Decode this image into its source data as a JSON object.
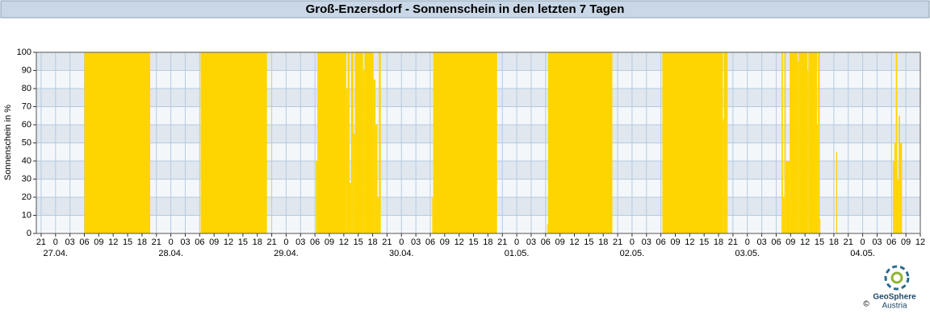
{
  "chart_data": {
    "type": "step-area",
    "title": "Groß-Enzersdorf - Sonnenschein in den letzten 7 Tagen",
    "y_label": "Sonnenschein in %",
    "x": [
      0,
      9,
      22.7,
      33.2,
      47.0,
      57.2,
      57.5,
      63.5,
      63.8,
      64.2,
      64.5,
      65.0,
      65.3,
      67.0,
      67.3,
      69.2,
      69.6,
      70.0,
      70.3,
      70.7,
      81.4,
      81.6,
      94.9,
      105.3,
      105.5,
      118.9,
      129.3,
      141.9,
      142.1,
      142.9,
      154.1,
      154.4,
      154.7,
      155.0,
      155.8,
      157.5,
      157.7,
      159.5,
      159.7,
      161.5,
      161.7,
      162.0,
      162.2,
      165.5,
      165.7,
      177.3,
      177.6,
      177.9,
      178.2,
      178.5,
      178.8,
      179.2,
      183
    ],
    "values": [
      0,
      100,
      0,
      100,
      0,
      40,
      100,
      80,
      100,
      28,
      100,
      55,
      100,
      90,
      100,
      85,
      60,
      20,
      100,
      0,
      20,
      100,
      0,
      5,
      100,
      0,
      100,
      63,
      100,
      0,
      100,
      20,
      100,
      40,
      100,
      95,
      100,
      90,
      100,
      60,
      100,
      8,
      0,
      45,
      0,
      40,
      50,
      100,
      30,
      65,
      50,
      0,
      0
    ],
    "color": "#ffd500",
    "xlim": [
      -1,
      183
    ],
    "ylim": [
      0,
      100
    ],
    "yticks": [
      0,
      10,
      20,
      30,
      40,
      50,
      60,
      70,
      80,
      90,
      100
    ],
    "xticks": [
      {
        "value": 0,
        "label": "21"
      },
      {
        "value": 3,
        "label": "0"
      },
      {
        "value": 6,
        "label": "03"
      },
      {
        "value": 9,
        "label": "06"
      },
      {
        "value": 12,
        "label": "09"
      },
      {
        "value": 15,
        "label": "12"
      },
      {
        "value": 18,
        "label": "15"
      },
      {
        "value": 21,
        "label": "18"
      },
      {
        "value": 24,
        "label": "21"
      },
      {
        "value": 27,
        "label": "0"
      },
      {
        "value": 30,
        "label": "03"
      },
      {
        "value": 33,
        "label": "06"
      },
      {
        "value": 36,
        "label": "09"
      },
      {
        "value": 39,
        "label": "12"
      },
      {
        "value": 42,
        "label": "15"
      },
      {
        "value": 45,
        "label": "18"
      },
      {
        "value": 48,
        "label": "21"
      },
      {
        "value": 51,
        "label": "0"
      },
      {
        "value": 54,
        "label": "03"
      },
      {
        "value": 57,
        "label": "06"
      },
      {
        "value": 60,
        "label": "09"
      },
      {
        "value": 63,
        "label": "12"
      },
      {
        "value": 66,
        "label": "15"
      },
      {
        "value": 69,
        "label": "18"
      },
      {
        "value": 72,
        "label": "21"
      },
      {
        "value": 75,
        "label": "0"
      },
      {
        "value": 78,
        "label": "03"
      },
      {
        "value": 81,
        "label": "06"
      },
      {
        "value": 84,
        "label": "09"
      },
      {
        "value": 87,
        "label": "12"
      },
      {
        "value": 90,
        "label": "15"
      },
      {
        "value": 93,
        "label": "18"
      },
      {
        "value": 96,
        "label": "21"
      },
      {
        "value": 99,
        "label": "0"
      },
      {
        "value": 102,
        "label": "03"
      },
      {
        "value": 105,
        "label": "06"
      },
      {
        "value": 108,
        "label": "09"
      },
      {
        "value": 111,
        "label": "12"
      },
      {
        "value": 114,
        "label": "15"
      },
      {
        "value": 117,
        "label": "18"
      },
      {
        "value": 120,
        "label": "21"
      },
      {
        "value": 123,
        "label": "0"
      },
      {
        "value": 126,
        "label": "03"
      },
      {
        "value": 129,
        "label": "06"
      },
      {
        "value": 132,
        "label": "09"
      },
      {
        "value": 135,
        "label": "12"
      },
      {
        "value": 138,
        "label": "15"
      },
      {
        "value": 141,
        "label": "18"
      },
      {
        "value": 144,
        "label": "21"
      },
      {
        "value": 147,
        "label": "0"
      },
      {
        "value": 150,
        "label": "03"
      },
      {
        "value": 153,
        "label": "06"
      },
      {
        "value": 156,
        "label": "09"
      },
      {
        "value": 159,
        "label": "12"
      },
      {
        "value": 162,
        "label": "15"
      },
      {
        "value": 165,
        "label": "18"
      },
      {
        "value": 168,
        "label": "21"
      },
      {
        "value": 171,
        "label": "0"
      },
      {
        "value": 174,
        "label": "03"
      },
      {
        "value": 177,
        "label": "06"
      },
      {
        "value": 180,
        "label": "09"
      },
      {
        "value": 183,
        "label": "12"
      }
    ],
    "x_date_labels": [
      {
        "value": 3,
        "label": "27.04."
      },
      {
        "value": 27,
        "label": "28.04."
      },
      {
        "value": 51,
        "label": "29.04."
      },
      {
        "value": 75,
        "label": "30.04."
      },
      {
        "value": 99,
        "label": "01.05."
      },
      {
        "value": 123,
        "label": "02.05."
      },
      {
        "value": 147,
        "label": "03.05."
      },
      {
        "value": 171,
        "label": "04.05."
      }
    ],
    "grid": true,
    "logo": {
      "name": "GeoSphere",
      "sub": "Austria",
      "copyright": "©"
    }
  }
}
